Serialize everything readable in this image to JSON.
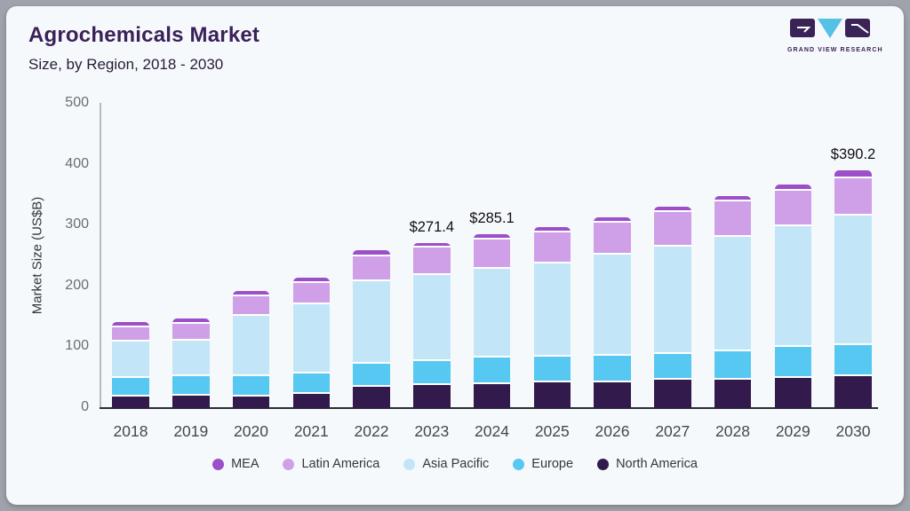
{
  "header": {
    "title": "Agrochemicals Market",
    "subtitle": "Size, by Region, 2018 - 2030",
    "logo_text": "GRAND VIEW RESEARCH"
  },
  "theme": {
    "frame_background": "#a0a3ac",
    "card_background": "#f6f9fc",
    "title_color": "#3a2158",
    "axis_line_dark": "#2c2e37",
    "axis_line_light": "#b6b9c1"
  },
  "chart_data": {
    "type": "bar",
    "stacked": true,
    "title": "Agrochemicals Market Size, by Region, 2018 - 2030",
    "xlabel": "",
    "ylabel": "Market Size (US$B)",
    "ylim": [
      0,
      500
    ],
    "yticks": [
      0,
      100,
      200,
      300,
      400,
      500
    ],
    "grid": false,
    "legend_position": "bottom",
    "legend_order": [
      "MEA",
      "Latin America",
      "Asia Pacific",
      "Europe",
      "North America"
    ],
    "categories": [
      "2018",
      "2019",
      "2020",
      "2021",
      "2022",
      "2023",
      "2024",
      "2025",
      "2026",
      "2027",
      "2028",
      "2029",
      "2030"
    ],
    "series": [
      {
        "name": "North America",
        "color": "#321a4d",
        "values": [
          19,
          21,
          19.5,
          24,
          35,
          37.5,
          39,
          42,
          42,
          46,
          47,
          50,
          53.2
        ]
      },
      {
        "name": "Europe",
        "color": "#57c8f2",
        "values": [
          31,
          32,
          33,
          33,
          38,
          39.3,
          43.7,
          42,
          44,
          43,
          46,
          50,
          51
        ]
      },
      {
        "name": "Asia Pacific",
        "color": "#c2e6f7",
        "values": [
          59,
          58,
          99,
          113,
          136,
          142,
          146.7,
          154,
          166,
          177,
          188,
          199,
          212
        ]
      },
      {
        "name": "Latin America",
        "color": "#cfa0e8",
        "values": [
          24,
          28,
          32,
          35,
          41,
          44.7,
          47.7,
          51,
          53,
          56,
          58,
          58,
          62
        ]
      },
      {
        "name": "MEA",
        "color": "#9b4fc8",
        "values": [
          8,
          8,
          8.5,
          9,
          9,
          7.9,
          8,
          9,
          9,
          9,
          10,
          11,
          12
        ]
      }
    ],
    "totals": [
      141,
      147,
      192,
      214,
      259,
      271.4,
      285.1,
      298,
      314,
      331,
      349,
      368,
      390.2
    ],
    "data_labels": [
      {
        "category": "2023",
        "text": "$271.4"
      },
      {
        "category": "2024",
        "text": "$285.1"
      },
      {
        "category": "2030",
        "text": "$390.2"
      }
    ]
  }
}
